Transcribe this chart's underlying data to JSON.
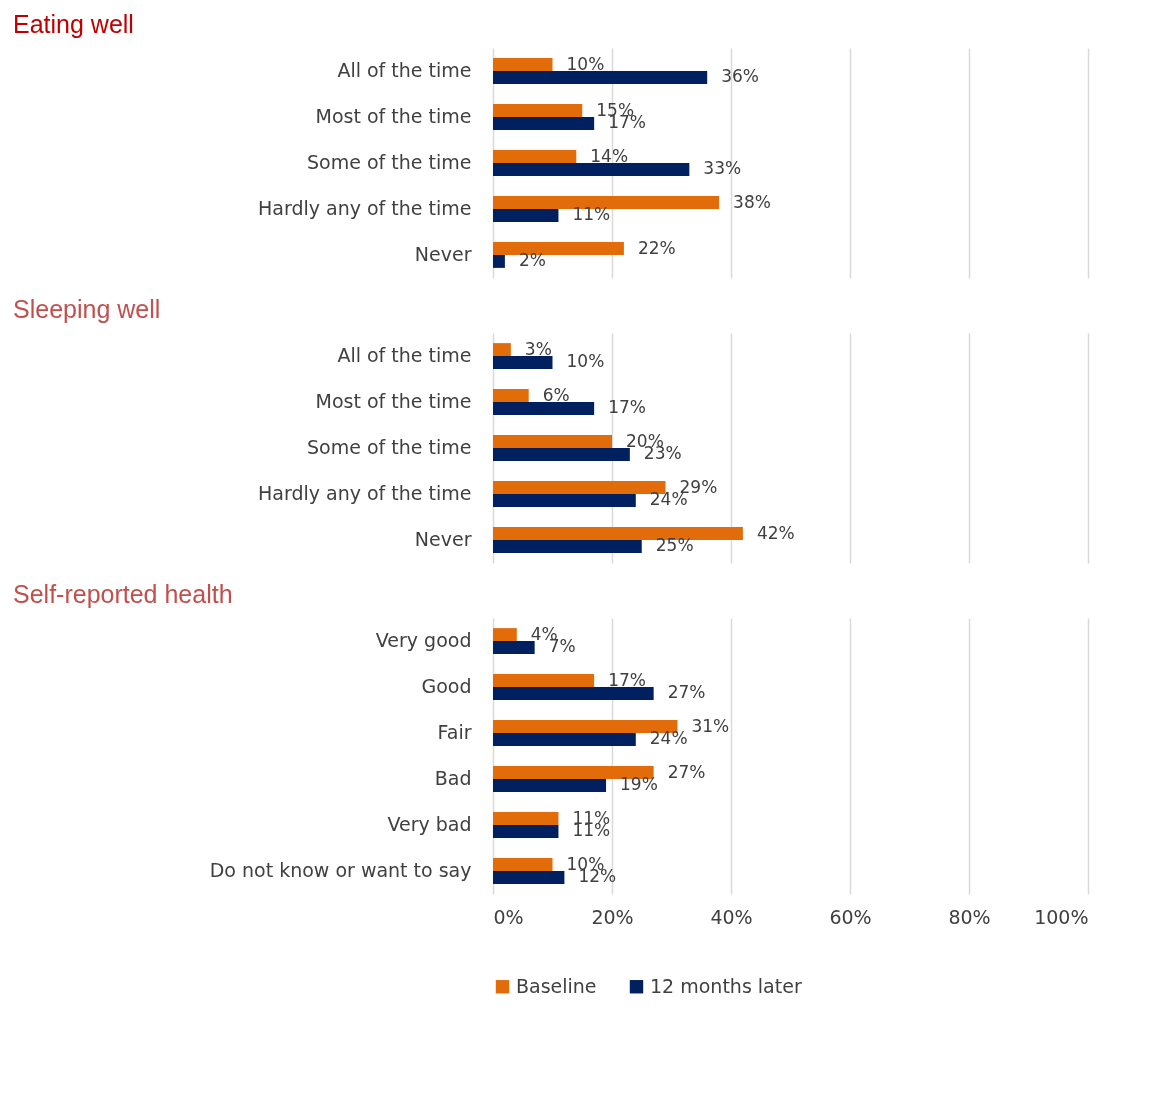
{
  "chart_data": [
    {
      "type": "bar",
      "orientation": "horizontal",
      "title": "Eating well",
      "categories": [
        "All of the time",
        "Most of the time",
        "Some of the time",
        "Hardly any of the time",
        "Never"
      ],
      "series": [
        {
          "color": "#e36c0a",
          "values": [
            10,
            15,
            14,
            38,
            22
          ],
          "value_labels": [
            "10%",
            "15%",
            "14%",
            "38%",
            "22%"
          ]
        },
        {
          "color": "#002060",
          "values": [
            36,
            17,
            33,
            11,
            2
          ],
          "value_labels": [
            "36%",
            "17%",
            "33%",
            "11%",
            "2%"
          ]
        }
      ],
      "xlim": [
        0,
        100
      ],
      "xticks": [
        {
          "value": 0,
          "label": null
        },
        {
          "value": 20,
          "label": null
        },
        {
          "value": 40,
          "label": null
        },
        {
          "value": 60,
          "label": null
        },
        {
          "value": 80,
          "label": null
        },
        {
          "value": 100,
          "label": null
        }
      ],
      "grid": "x",
      "tick_labels": "y"
    },
    {
      "type": "bar",
      "orientation": "horizontal",
      "title": "Sleeping well",
      "categories": [
        "All of the time",
        "Most of the time",
        "Some of the time",
        "Hardly any of the time",
        "Never"
      ],
      "series": [
        {
          "color": "#e36c0a",
          "values": [
            3,
            6,
            20,
            29,
            42
          ],
          "value_labels": [
            "3%",
            "6%",
            "20%",
            "29%",
            "42%"
          ]
        },
        {
          "color": "#002060",
          "values": [
            10,
            17,
            23,
            24,
            25
          ],
          "value_labels": [
            "10%",
            "17%",
            "23%",
            "24%",
            "25%"
          ]
        }
      ],
      "xlim": [
        0,
        100
      ],
      "xticks": [
        {
          "value": 0,
          "label": null
        },
        {
          "value": 20,
          "label": null
        },
        {
          "value": 40,
          "label": null
        },
        {
          "value": 60,
          "label": null
        },
        {
          "value": 80,
          "label": null
        },
        {
          "value": 100,
          "label": null
        }
      ],
      "grid": "x",
      "tick_labels": "y"
    },
    {
      "type": "bar",
      "orientation": "horizontal",
      "title": "Self-reported health",
      "categories": [
        "Very good",
        "Good",
        "Fair",
        "Bad",
        "Very bad",
        "Do not know or want to say"
      ],
      "series": [
        {
          "name": "Baseline",
          "color": "#e36c0a",
          "values": [
            4,
            17,
            31,
            27,
            11,
            10
          ],
          "value_labels": [
            "4%",
            "17%",
            "31%",
            "27%",
            "11%",
            "10%"
          ]
        },
        {
          "name": "12 months later",
          "color": "#002060",
          "values": [
            7,
            27,
            24,
            19,
            11,
            12
          ],
          "value_labels": [
            "7%",
            "27%",
            "24%",
            "19%",
            "11%",
            "12%"
          ]
        }
      ],
      "xlim": [
        0,
        100
      ],
      "xticks": [
        {
          "value": 0,
          "label": "0%"
        },
        {
          "value": 20,
          "label": "20%"
        },
        {
          "value": 40,
          "label": "40%"
        },
        {
          "value": 60,
          "label": "60%"
        },
        {
          "value": 80,
          "label": "80%"
        },
        {
          "value": 100,
          "label": "100%"
        }
      ],
      "grid": "x",
      "legend": "bottom"
    }
  ]
}
